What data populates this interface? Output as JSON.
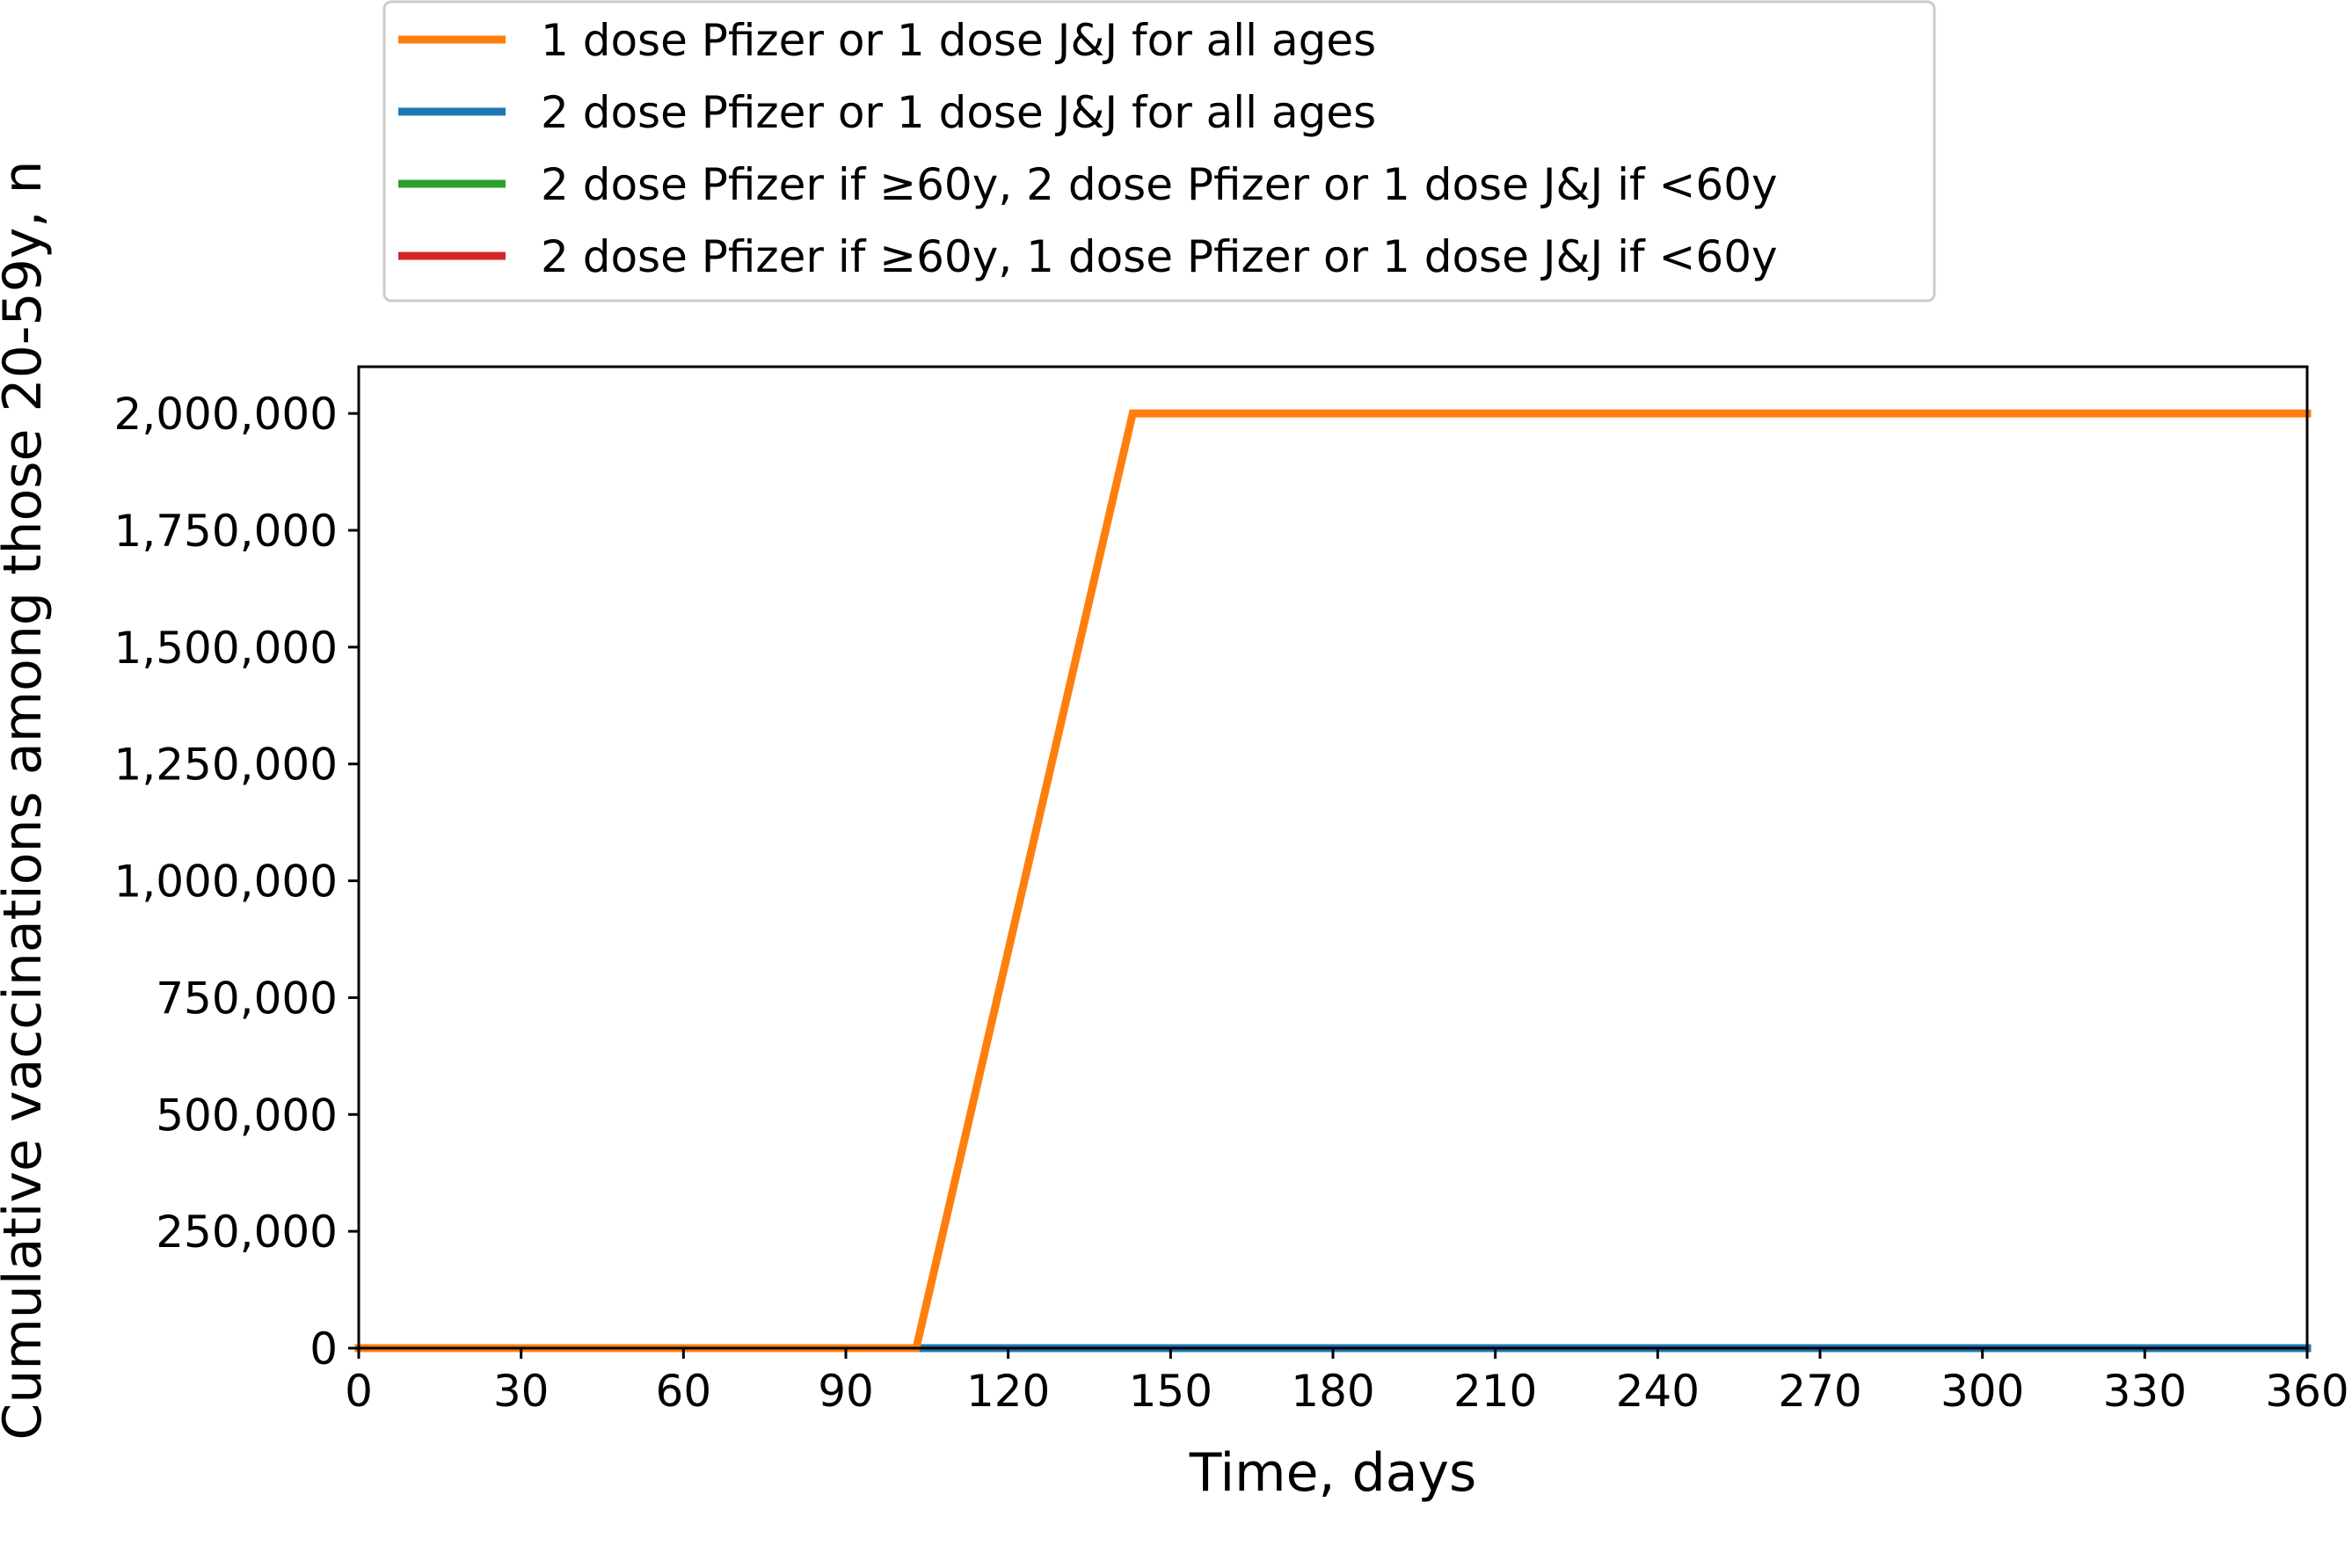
{
  "chart_data": {
    "type": "line",
    "title": "",
    "xlabel": "Time, days",
    "ylabel": "Cumulative vaccinations among those 20-59y, n",
    "xlim": [
      0,
      360
    ],
    "ylim": [
      0,
      2100000
    ],
    "xticks": [
      0,
      30,
      60,
      90,
      120,
      150,
      180,
      210,
      240,
      270,
      300,
      330,
      360
    ],
    "yticks": [
      0,
      250000,
      500000,
      750000,
      1000000,
      1250000,
      1500000,
      1750000,
      2000000
    ],
    "xtick_labels": [
      "0",
      "30",
      "60",
      "90",
      "120",
      "150",
      "180",
      "210",
      "240",
      "270",
      "300",
      "330",
      "360"
    ],
    "ytick_labels": [
      "0",
      "250,000",
      "500,000",
      "750,000",
      "1,000,000",
      "1,250,000",
      "1,500,000",
      "1,750,000",
      "2,000,000"
    ],
    "grid": false,
    "legend_position": "above plot, top-left",
    "series": [
      {
        "name": "1 dose Pfizer or 1 dose J&J for all ages",
        "color": "#ff7f0e",
        "x": [
          0,
          103,
          143,
          360
        ],
        "y": [
          0,
          0,
          2000000,
          2000000
        ]
      },
      {
        "name": "2 dose Pfizer or 1 dose J&J for all ages",
        "color": "#1f77b4",
        "x": [
          0,
          360
        ],
        "y": [
          0,
          0
        ]
      },
      {
        "name": "2 dose Pfizer if ≥60y, 2 dose Pfizer or 1 dose J&J if <60y",
        "color": "#2ca02c",
        "x": [
          0,
          360
        ],
        "y": [
          0,
          0
        ]
      },
      {
        "name": "2 dose Pfizer if ≥60y, 1 dose Pfizer or 1 dose J&J if <60y",
        "color": "#d62728",
        "x": [
          0,
          360
        ],
        "y": [
          0,
          0
        ]
      }
    ]
  }
}
